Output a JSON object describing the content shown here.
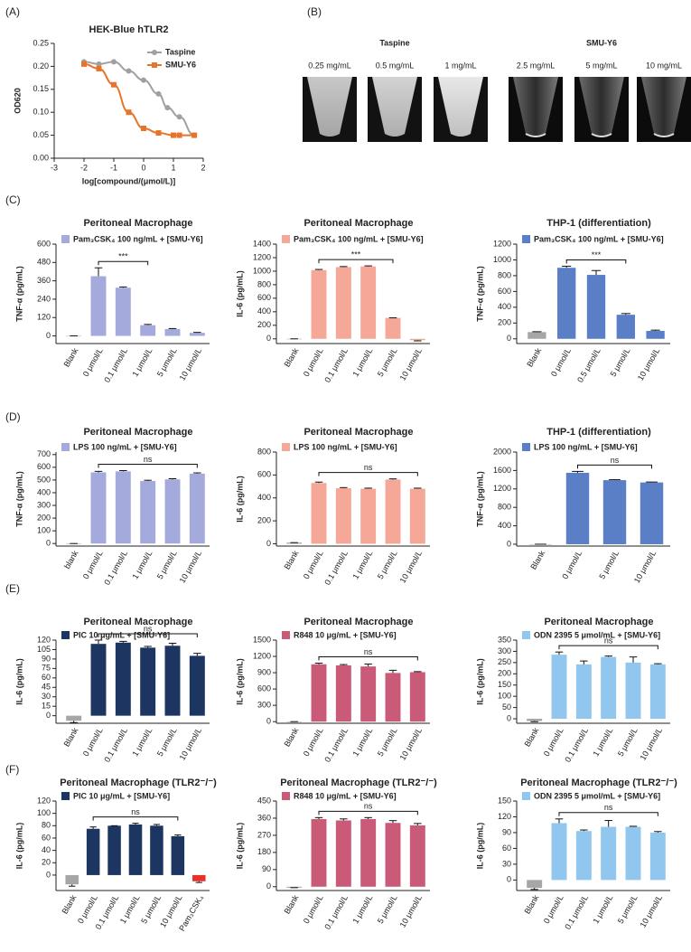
{
  "chart_data": [
    {
      "type": "line",
      "panel": "(A)",
      "title": "HEK-Blue hTLR2",
      "xlabel": "log[compound/(μmol/L)]",
      "ylabel": "OD620",
      "xlim": [
        -3,
        2
      ],
      "xticks": [
        -3,
        -2,
        -1,
        0,
        1,
        2
      ],
      "ylim": [
        0,
        0.25
      ],
      "yticks": [
        {
          "value": 0,
          "label": "0.00"
        },
        0.05,
        {
          "value": 0.1,
          "label": "0.10"
        },
        0.15,
        {
          "value": 0.2,
          "label": "0.20"
        },
        0.25
      ],
      "series": [
        {
          "name": "Taspine",
          "color": "#a0a0a0",
          "marker": "circle",
          "x": [
            -2,
            -1.5,
            -1,
            -0.5,
            0,
            0.5,
            0.8,
            1.2,
            1.7
          ],
          "values": [
            0.21,
            0.205,
            0.21,
            0.19,
            0.17,
            0.14,
            0.11,
            0.09,
            0.05
          ]
        },
        {
          "name": "SMU-Y6",
          "color": "#e8732a",
          "marker": "square",
          "x": [
            -2,
            -1.5,
            -1,
            -0.5,
            0,
            0.5,
            1,
            1.2,
            1.7
          ],
          "values": [
            0.205,
            0.195,
            0.16,
            0.1,
            0.065,
            0.055,
            0.05,
            0.05,
            0.05
          ]
        }
      ]
    },
    {
      "type": "bar",
      "panel": "(C)",
      "title": "Peritoneal Macrophage",
      "ylabel": "TNF-α (pg/mL)",
      "ylim": [
        -50,
        600
      ],
      "yticks": [
        0,
        120,
        240,
        360,
        480,
        600
      ],
      "categories": [
        "Blank",
        "0 μmol/L",
        "0.1 μmol/L",
        "1 μmol/L",
        "5 μmol/L",
        "10 μmol/L"
      ],
      "series": [
        {
          "name": "Pam₃CSK₄ 100 ng/mL + [SMU-Y6]",
          "color": "#a4abdc",
          "colors": [
            "#a6a6a6",
            "#a4abdc",
            "#a4abdc",
            "#a4abdc",
            "#a4abdc",
            "#a4abdc"
          ],
          "values": [
            0,
            390,
            315,
            70,
            45,
            20
          ],
          "errors": [
            0,
            55,
            5,
            5,
            3,
            3
          ]
        }
      ],
      "bracket": {
        "label": "***",
        "start": 1,
        "end": 3
      }
    },
    {
      "type": "bar",
      "title": "Peritoneal Macrophage",
      "ylabel": "IL-6 (pg/mL)",
      "ylim": [
        -70,
        1400
      ],
      "yticks": [
        0,
        200,
        400,
        600,
        800,
        1000,
        1200,
        1400
      ],
      "categories": [
        "Blank",
        "0 μmol/L",
        "0.1 μmol/L",
        "1 μmol/L",
        "5 μmol/L",
        "10 μmol/L"
      ],
      "series": [
        {
          "name": "Pam₃CSK₄ 100 ng/mL + [SMU-Y6]",
          "color": "#f5a898",
          "colors": [
            "#a6a6a6",
            "#f5a898",
            "#f5a898",
            "#f5a898",
            "#f5a898",
            "#f5a898"
          ],
          "values": [
            0,
            1015,
            1060,
            1070,
            310,
            -20
          ],
          "errors": [
            0,
            10,
            8,
            8,
            0,
            10
          ]
        }
      ],
      "bracket": {
        "label": "***",
        "start": 1,
        "end": 4
      }
    },
    {
      "type": "bar",
      "title": "THP-1 (differentiation)",
      "ylabel": "TNF-α (pg/mL)",
      "ylim": [
        -60,
        1200
      ],
      "yticks": [
        0,
        200,
        400,
        600,
        800,
        1000,
        1200
      ],
      "categories": [
        "Blank",
        "0 μmol/L",
        "0.5 μmol/L",
        "5 μmol/L",
        "10 μmol/L"
      ],
      "series": [
        {
          "name": "Pam₃CSK₄ 100 ng/mL + [SMU-Y6]",
          "color": "#5a7fc6",
          "colors": [
            "#a6a6a6",
            "#5a7fc6",
            "#5a7fc6",
            "#5a7fc6",
            "#5a7fc6"
          ],
          "values": [
            85,
            900,
            810,
            305,
            100
          ],
          "errors": [
            5,
            20,
            55,
            15,
            10
          ]
        }
      ],
      "bracket": {
        "label": "***",
        "start": 1,
        "end": 3
      }
    },
    {
      "type": "bar",
      "panel": "(D)",
      "title": "Peritoneal Macrophage",
      "ylabel": "TNF-α (pg/mL)",
      "ylim": [
        -20,
        720
      ],
      "yticks": [
        0,
        100,
        200,
        300,
        400,
        500,
        600,
        700
      ],
      "categories": [
        "blank",
        "0 μmol/L",
        "0.1 μmol/L",
        "1 μmol/L",
        "5 μmol/L",
        "10 μmol/L"
      ],
      "series": [
        {
          "name": "LPS 100 ng/mL + [SMU-Y6]",
          "color": "#a4abdc",
          "colors": [
            "#a6a6a6",
            "#a4abdc",
            "#a4abdc",
            "#a4abdc",
            "#a4abdc",
            "#a4abdc"
          ],
          "values": [
            0,
            560,
            568,
            492,
            505,
            550
          ],
          "errors": [
            0,
            8,
            6,
            6,
            5,
            6
          ]
        }
      ],
      "bracket": {
        "label": "ns",
        "start": 1,
        "end": 5
      }
    },
    {
      "type": "bar",
      "title": "Peritoneal Macrophage",
      "ylabel": "IL-6 (pg/mL)",
      "ylim": [
        -20,
        800
      ],
      "yticks": [
        0,
        200,
        400,
        600,
        800
      ],
      "categories": [
        "Blank",
        "0 μmol/L",
        "0.1 μmol/L",
        "1 μmol/L",
        "5 μmol/L",
        "10 μmol/L"
      ],
      "series": [
        {
          "name": "LPS 100 ng/mL + [SMU-Y6]",
          "color": "#f5a898",
          "colors": [
            "#a6a6a6",
            "#f5a898",
            "#f5a898",
            "#f5a898",
            "#f5a898",
            "#f5a898"
          ],
          "values": [
            10,
            530,
            485,
            480,
            560,
            480
          ],
          "errors": [
            0,
            8,
            5,
            5,
            6,
            5
          ]
        }
      ],
      "bracket": {
        "label": "ns",
        "start": 1,
        "end": 5
      }
    },
    {
      "type": "bar",
      "title": "THP-1 (differentiation)",
      "ylabel": "TNF-α (pg/mL)",
      "ylim": [
        -40,
        2000
      ],
      "yticks": [
        0,
        400,
        800,
        1200,
        1600,
        2000
      ],
      "categories": [
        "Blank",
        "0 μmol/L",
        "5 μmol/L",
        "10 μmol/L"
      ],
      "series": [
        {
          "name": "LPS 100 ng/mL + [SMU-Y6]",
          "color": "#5a7fc6",
          "colors": [
            "#a6a6a6",
            "#5a7fc6",
            "#5a7fc6",
            "#5a7fc6"
          ],
          "values": [
            0,
            1550,
            1390,
            1340
          ],
          "errors": [
            0,
            30,
            10,
            10
          ]
        }
      ],
      "bracket": {
        "label": "ns",
        "start": 1,
        "end": 3
      }
    },
    {
      "type": "bar",
      "panel": "(E)",
      "title": "Peritoneal Macrophage",
      "ylabel": "IL-6 (pg/mL)",
      "ylim": [
        -12,
        120
      ],
      "yticks": [
        0,
        15,
        30,
        45,
        60,
        75,
        90,
        105,
        120
      ],
      "categories": [
        "Blank",
        "0 μmol/L",
        "0.1 μmol/L",
        "1 μmol/L",
        "5 μmol/L",
        "10 μmol/L"
      ],
      "series": [
        {
          "name": "PIC 10 μg/mL + [SMU-Y6]",
          "color": "#1d3661",
          "colors": [
            "#a6a6a6",
            "#1d3661",
            "#1d3661",
            "#1d3661",
            "#1d3661",
            "#1d3661"
          ],
          "values": [
            -8,
            114,
            116,
            108,
            111,
            95
          ],
          "errors": [
            3,
            6,
            2,
            2,
            4,
            4
          ]
        }
      ],
      "bracket": {
        "label": "ns",
        "start": 1,
        "end": 5
      }
    },
    {
      "type": "bar",
      "title": "Peritoneal Macrophage",
      "ylabel": "IL-6 (pg/mL)",
      "ylim": [
        -30,
        1500
      ],
      "yticks": [
        0,
        300,
        600,
        900,
        1200,
        1500
      ],
      "categories": [
        "Blank",
        "0 μmol/L",
        "0.1 μmol/L",
        "1 μmol/L",
        "5 μmol/L",
        "10 μmol/L"
      ],
      "series": [
        {
          "name": "R848 10 μg/mL + [SMU-Y6]",
          "color": "#c95b78",
          "colors": [
            "#a6a6a6",
            "#c95b78",
            "#c95b78",
            "#c95b78",
            "#c95b78",
            "#c95b78"
          ],
          "values": [
            0,
            1055,
            1035,
            1015,
            895,
            910
          ],
          "errors": [
            0,
            20,
            15,
            45,
            50,
            10
          ]
        }
      ],
      "bracket": {
        "label": "ns",
        "start": 1,
        "end": 5
      }
    },
    {
      "type": "bar",
      "title": "Peritoneal Macrophage",
      "ylabel": "IL-6 (pg/mL)",
      "ylim": [
        -20,
        350
      ],
      "yticks": [
        0,
        50,
        100,
        150,
        200,
        250,
        300,
        350
      ],
      "categories": [
        "Blank",
        "0 μmol/L",
        "0.1 μmol/L",
        "1 μmol/L",
        "5 μmol/L",
        "10 μmol/L"
      ],
      "series": [
        {
          "name": "ODN 2395 5 μmol/mL + [SMU-Y6]",
          "color": "#91c6ee",
          "colors": [
            "#a6a6a6",
            "#91c6ee",
            "#91c6ee",
            "#91c6ee",
            "#91c6ee",
            "#91c6ee"
          ],
          "values": [
            -10,
            285,
            242,
            275,
            250,
            242
          ],
          "errors": [
            3,
            12,
            15,
            4,
            25,
            3
          ]
        }
      ],
      "bracket": {
        "label": "ns",
        "start": 1,
        "end": 5
      }
    },
    {
      "type": "bar",
      "panel": "(F)",
      "title": "Peritoneal Macrophage (TLR2⁻/⁻)",
      "ylabel": "IL-6 (pg/mL)",
      "ylim": [
        -25,
        120
      ],
      "yticks": [
        0,
        20,
        40,
        60,
        80,
        100,
        120
      ],
      "categories": [
        "Blank",
        "0 μmol/L",
        "0.1 μmol/L",
        "1 μmol/L",
        "5 μmol/L",
        "10 μmol/L",
        "Pam₃CSK₄"
      ],
      "series": [
        {
          "name": "PIC 10 μg/mL + [SMU-Y6]",
          "color": "#1d3661",
          "colors": [
            "#a6a6a6",
            "#1d3661",
            "#1d3661",
            "#1d3661",
            "#1d3661",
            "#1d3661",
            "#e8302a"
          ],
          "values": [
            -15,
            75,
            80,
            82,
            80,
            63,
            -10
          ],
          "errors": [
            3,
            3,
            0,
            2,
            2,
            2,
            2
          ]
        }
      ],
      "bracket": {
        "label": "ns",
        "start": 1,
        "end": 5
      }
    },
    {
      "type": "bar",
      "title": "Peritoneal Macrophage (TLR2⁻/⁻)",
      "ylabel": "IL-6 (pg/mL)",
      "ylim": [
        -20,
        450
      ],
      "yticks": [
        0,
        90,
        180,
        270,
        360,
        450
      ],
      "categories": [
        "Blank",
        "0 μmol/L",
        "0.1 μmol/L",
        "1 μmol/L",
        "5 μmol/L",
        "10 μmol/L"
      ],
      "series": [
        {
          "name": "R848 10 μg/mL + [SMU-Y6]",
          "color": "#c95b78",
          "colors": [
            "#a6a6a6",
            "#c95b78",
            "#c95b78",
            "#c95b78",
            "#c95b78",
            "#c95b78"
          ],
          "values": [
            -5,
            355,
            348,
            355,
            335,
            322
          ],
          "errors": [
            0,
            8,
            8,
            8,
            12,
            10
          ]
        }
      ],
      "bracket": {
        "label": "ns",
        "start": 1,
        "end": 5
      }
    },
    {
      "type": "bar",
      "title": "Peritoneal Macrophage (TLR2⁻/⁻)",
      "ylabel": "IL-6 (pg/mL)",
      "ylim": [
        -20,
        150
      ],
      "yticks": [
        0,
        30,
        60,
        90,
        120,
        150
      ],
      "categories": [
        "Blank",
        "0 μmol/L",
        "0.1 μmol/L",
        "1 μmol/L",
        "5 μmol/L",
        "10 μmol/L"
      ],
      "series": [
        {
          "name": "ODN 2395 5 μmol/mL + [SMU-Y6]",
          "color": "#91c6ee",
          "colors": [
            "#a6a6a6",
            "#91c6ee",
            "#91c6ee",
            "#91c6ee",
            "#91c6ee",
            "#91c6ee"
          ],
          "values": [
            -15,
            108,
            93,
            101,
            101,
            90
          ],
          "errors": [
            3,
            8,
            2,
            12,
            1,
            2
          ]
        }
      ],
      "bracket": {
        "label": "ns",
        "start": 1,
        "end": 5
      }
    }
  ],
  "photos": {
    "panel": "(B)",
    "groups": [
      {
        "name": "Taspine",
        "labels": [
          "0.25 mg/mL",
          "0.5 mg/mL",
          "1 mg/mL"
        ]
      },
      {
        "name": "SMU-Y6",
        "labels": [
          "2.5 mg/mL",
          "5 mg/mL",
          "10 mg/mL"
        ]
      }
    ]
  }
}
